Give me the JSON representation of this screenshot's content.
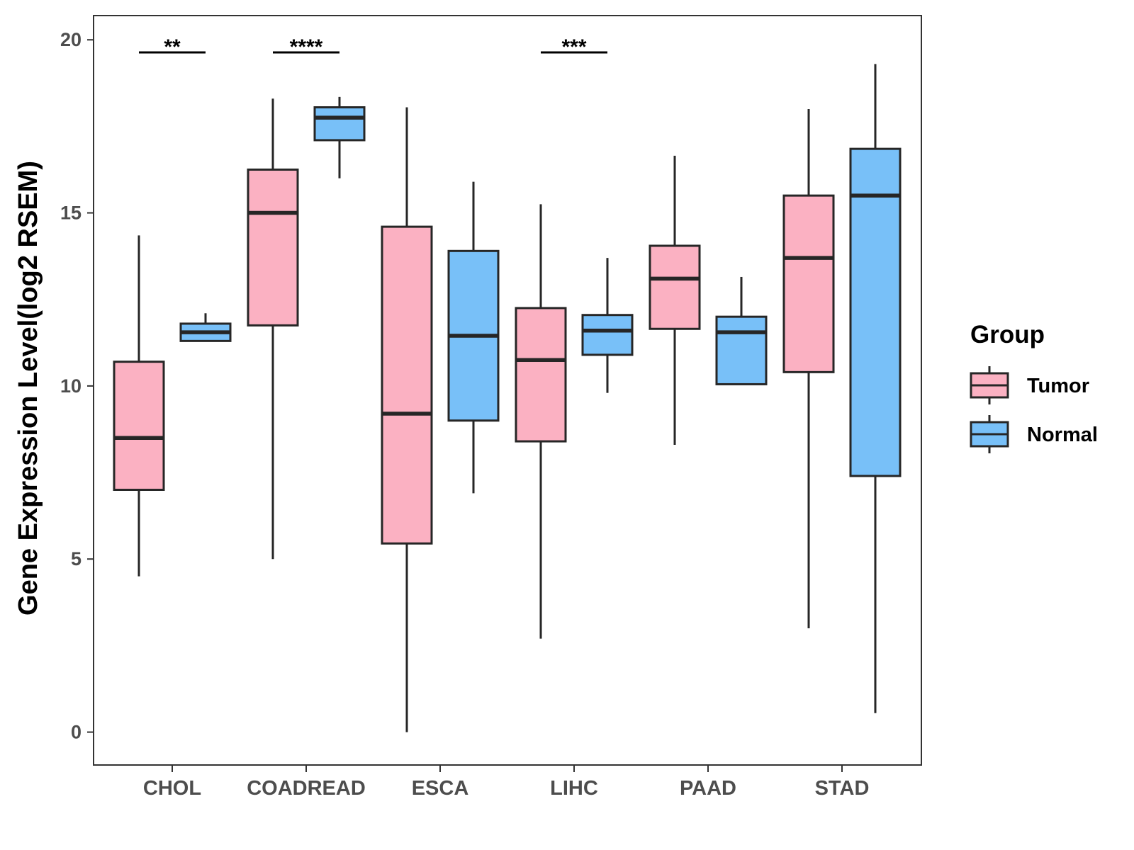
{
  "chart_data": {
    "type": "boxplot",
    "title": "",
    "xlabel": "",
    "ylabel": "Gene Expression Level(log2 RSEM)",
    "ylim": [
      -0.95,
      20.7
    ],
    "yticks": [
      0,
      5,
      10,
      15,
      20
    ],
    "grid": false,
    "categories": [
      "CHOL",
      "COADREAD",
      "ESCA",
      "LIHC",
      "PAAD",
      "STAD"
    ],
    "legend": {
      "title": "Group",
      "position": "right",
      "items": [
        {
          "label": "Tumor",
          "color": "#FBB1C2"
        },
        {
          "label": "Normal",
          "color": "#78C0F8"
        }
      ]
    },
    "series": [
      {
        "name": "Tumor",
        "color": "#FBB1C2",
        "boxes": [
          {
            "min": 4.5,
            "q1": 7.0,
            "median": 8.5,
            "q3": 10.7,
            "max": 14.35
          },
          {
            "min": 5.0,
            "q1": 11.75,
            "median": 15.0,
            "q3": 16.25,
            "max": 18.3
          },
          {
            "min": 0.0,
            "q1": 5.45,
            "median": 9.2,
            "q3": 14.6,
            "max": 18.05
          },
          {
            "min": 2.7,
            "q1": 8.4,
            "median": 10.75,
            "q3": 12.25,
            "max": 15.25
          },
          {
            "min": 8.3,
            "q1": 11.65,
            "median": 13.1,
            "q3": 14.05,
            "max": 16.65
          },
          {
            "min": 3.0,
            "q1": 10.4,
            "median": 13.7,
            "q3": 15.5,
            "max": 18.0
          }
        ]
      },
      {
        "name": "Normal",
        "color": "#78C0F8",
        "boxes": [
          {
            "min": 11.3,
            "q1": 11.3,
            "median": 11.55,
            "q3": 11.8,
            "max": 12.1
          },
          {
            "min": 16.0,
            "q1": 17.1,
            "median": 17.75,
            "q3": 18.05,
            "max": 18.35
          },
          {
            "min": 6.9,
            "q1": 9.0,
            "median": 11.45,
            "q3": 13.9,
            "max": 15.9
          },
          {
            "min": 9.8,
            "q1": 10.9,
            "median": 11.6,
            "q3": 12.05,
            "max": 13.7
          },
          {
            "min": 10.05,
            "q1": 10.05,
            "median": 11.55,
            "q3": 12.0,
            "max": 13.15
          },
          {
            "min": 0.55,
            "q1": 7.4,
            "median": 15.5,
            "q3": 16.85,
            "max": 19.3
          }
        ]
      }
    ],
    "significance": [
      {
        "category": "CHOL",
        "label": "**"
      },
      {
        "category": "COADREAD",
        "label": "****"
      },
      {
        "category": "LIHC",
        "label": "***"
      }
    ]
  }
}
